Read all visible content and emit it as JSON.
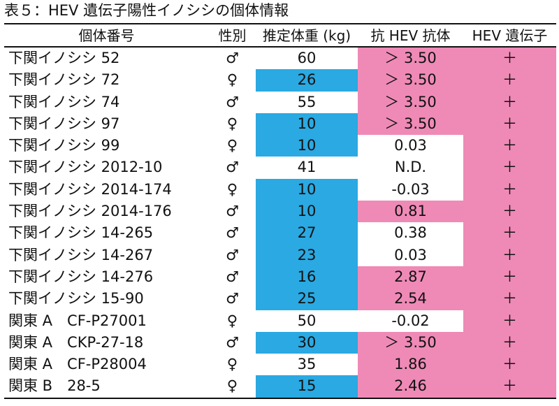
{
  "title": "表５：HEV 遺伝子陽性イノシシの個体情報",
  "headers": [
    "個体番号",
    "性別",
    "推定体重 (kg)",
    "抗 HEV 抗体",
    "HEV 遺伝子"
  ],
  "colors": {
    "weight_highlight": "#2aa9e2",
    "antibody_highlight": "#ef8ab7",
    "gene_highlight": "#ef8ab7"
  },
  "rows": [
    {
      "id": "下関イノシシ 52",
      "sex": "♂",
      "weight": "60",
      "antibody": "＞ 3.50",
      "gene": "＋"
    },
    {
      "id": "下関イノシシ 72",
      "sex": "♀",
      "weight": "26",
      "antibody": "＞ 3.50",
      "gene": "＋"
    },
    {
      "id": "下関イノシシ 74",
      "sex": "♂",
      "weight": "55",
      "antibody": "＞ 3.50",
      "gene": "＋"
    },
    {
      "id": "下関イノシシ 97",
      "sex": "♀",
      "weight": "10",
      "antibody": "＞ 3.50",
      "gene": "＋"
    },
    {
      "id": "下関イノシシ 99",
      "sex": "♀",
      "weight": "10",
      "antibody": "0.03",
      "gene": "＋"
    },
    {
      "id": "下関イノシシ 2012-10",
      "sex": "♂",
      "weight": "41",
      "antibody": "N.D.",
      "gene": "＋"
    },
    {
      "id": "下関イノシシ 2014-174",
      "sex": "♀",
      "weight": "10",
      "antibody": "-0.03",
      "gene": "＋"
    },
    {
      "id": "下関イノシシ 2014-176",
      "sex": "♂",
      "weight": "10",
      "antibody": "0.81",
      "gene": "＋"
    },
    {
      "id": "下関イノシシ 14-265",
      "sex": "♂",
      "weight": "27",
      "antibody": "0.38",
      "gene": "＋"
    },
    {
      "id": "下関イノシシ 14-267",
      "sex": "♂",
      "weight": "23",
      "antibody": "0.03",
      "gene": "＋"
    },
    {
      "id": "下関イノシシ 14-276",
      "sex": "♂",
      "weight": "16",
      "antibody": "2.87",
      "gene": "＋"
    },
    {
      "id": "下関イノシシ 15-90",
      "sex": "♂",
      "weight": "25",
      "antibody": "2.54",
      "gene": "＋"
    },
    {
      "id": "関東 A　CF-P27001",
      "sex": "♀",
      "weight": "50",
      "antibody": "-0.02",
      "gene": "＋"
    },
    {
      "id": "関東 A　CKP-27-18",
      "sex": "♂",
      "weight": "30",
      "antibody": "＞ 3.50",
      "gene": "＋"
    },
    {
      "id": "関東 A　CF-P28004",
      "sex": "♀",
      "weight": "35",
      "antibody": "1.86",
      "gene": "＋"
    },
    {
      "id": "関東 B　28-5",
      "sex": "♀",
      "weight": "15",
      "antibody": "2.46",
      "gene": "＋"
    }
  ]
}
